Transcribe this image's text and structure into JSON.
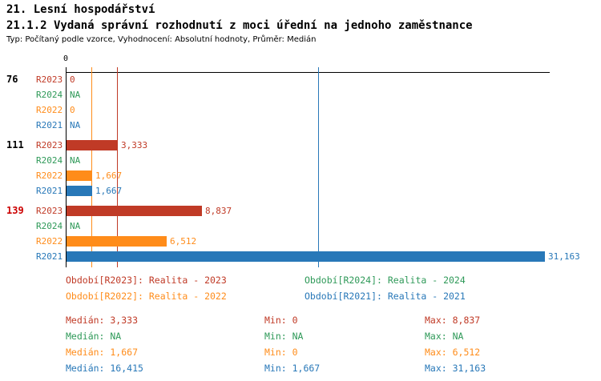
{
  "header": {
    "title": "21. Lesní hospodářství",
    "subtitle": "21.1.2 Vydaná správní rozhodnutí z moci úřední na jednoho zaměstnance",
    "meta": "Typ: Počítaný podle vzorce, Vyhodnocení: Absolutní hodnoty, Průměr: Medián"
  },
  "colors": {
    "highlight": "#cc0000",
    "axis": "#000000",
    "series": {
      "R2023": "#c03a26",
      "R2024": "#2e9958",
      "R2022": "#ff8c1a",
      "R2021": "#2878b8"
    }
  },
  "chart_data": {
    "type": "bar",
    "orientation": "horizontal",
    "title": "21.1.2 Vydaná správní rozhodnutí z moci úřední na jednoho zaměstnance",
    "axis": {
      "min": 0,
      "max": 31.4,
      "tick_label": "0",
      "grid": false
    },
    "series_order": [
      "R2023",
      "R2024",
      "R2022",
      "R2021"
    ],
    "groups": [
      {
        "label": "76",
        "highlight": false,
        "bars": [
          {
            "series": "R2023",
            "value": 0,
            "display": "0"
          },
          {
            "series": "R2024",
            "value": null,
            "display": "NA"
          },
          {
            "series": "R2022",
            "value": 0,
            "display": "0"
          },
          {
            "series": "R2021",
            "value": null,
            "display": "NA"
          }
        ]
      },
      {
        "label": "111",
        "highlight": false,
        "bars": [
          {
            "series": "R2023",
            "value": 3.333,
            "display": "3,333"
          },
          {
            "series": "R2024",
            "value": null,
            "display": "NA"
          },
          {
            "series": "R2022",
            "value": 1.667,
            "display": "1,667"
          },
          {
            "series": "R2021",
            "value": 1.667,
            "display": "1,667"
          }
        ]
      },
      {
        "label": "139",
        "highlight": true,
        "bars": [
          {
            "series": "R2023",
            "value": 8.837,
            "display": "8,837"
          },
          {
            "series": "R2024",
            "value": null,
            "display": "NA"
          },
          {
            "series": "R2022",
            "value": 6.512,
            "display": "6,512"
          },
          {
            "series": "R2021",
            "value": 31.163,
            "display": "31,163"
          }
        ]
      }
    ],
    "median_lines": [
      {
        "series": "R2022",
        "value": 1.667
      },
      {
        "series": "R2023",
        "value": 3.333
      },
      {
        "series": "R2021",
        "value": 16.415
      }
    ],
    "legend": [
      {
        "series": "R2023",
        "text": "Období[R2023]: Realita - 2023"
      },
      {
        "series": "R2024",
        "text": "Období[R2024]: Realita - 2024"
      },
      {
        "series": "R2022",
        "text": "Období[R2022]: Realita - 2022"
      },
      {
        "series": "R2021",
        "text": "Období[R2021]: Realita - 2021"
      }
    ],
    "stats": [
      {
        "series": "R2023",
        "median": "Medián: 3,333",
        "min": "Min: 0",
        "max": "Max: 8,837"
      },
      {
        "series": "R2024",
        "median": "Medián: NA",
        "min": "Min: NA",
        "max": "Max: NA"
      },
      {
        "series": "R2022",
        "median": "Medián: 1,667",
        "min": "Min: 0",
        "max": "Max: 6,512"
      },
      {
        "series": "R2021",
        "median": "Medián: 16,415",
        "min": "Min: 1,667",
        "max": "Max: 31,163"
      }
    ]
  }
}
